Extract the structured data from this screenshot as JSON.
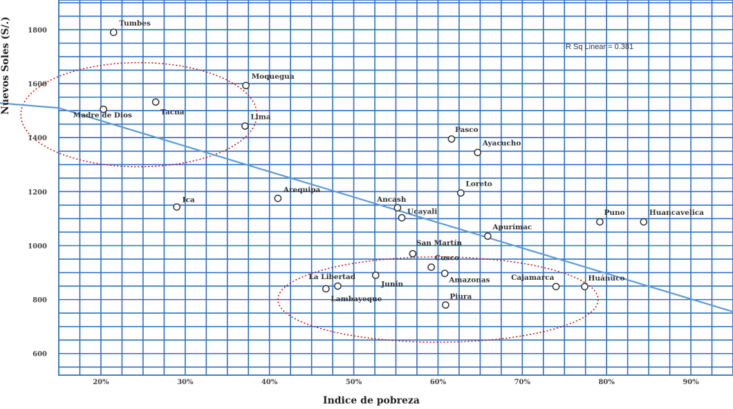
{
  "chart_data": {
    "type": "scatter",
    "xlabel": "Indice de pobreza",
    "ylabel": "Nuevos Soles (S/.)",
    "xlim": [
      0.15,
      0.95
    ],
    "ylim": [
      520,
      1910
    ],
    "x_ticks": [
      {
        "value": 0.2,
        "label": "20%"
      },
      {
        "value": 0.3,
        "label": "30%"
      },
      {
        "value": 0.4,
        "label": "40%"
      },
      {
        "value": 0.5,
        "label": "50%"
      },
      {
        "value": 0.6,
        "label": "60%"
      },
      {
        "value": 0.7,
        "label": "70%"
      },
      {
        "value": 0.8,
        "label": "80%"
      },
      {
        "value": 0.9,
        "label": "90%"
      }
    ],
    "y_ticks": [
      {
        "value": 600,
        "label": "600"
      },
      {
        "value": 800,
        "label": "800"
      },
      {
        "value": 1000,
        "label": "1000"
      },
      {
        "value": 1200,
        "label": "1200"
      },
      {
        "value": 1400,
        "label": "1400"
      },
      {
        "value": 1600,
        "label": "1600"
      },
      {
        "value": 1800,
        "label": "1800"
      }
    ],
    "grid": true,
    "annotation": "R Sq Linear = 0.381",
    "fit_line": {
      "x": [
        0.15,
        0.95
      ],
      "y": [
        1510,
        755
      ]
    },
    "points": [
      {
        "label": "Tumbes",
        "x": 0.215,
        "y": 1790
      },
      {
        "label": "Madre de Dios",
        "x": 0.203,
        "y": 1505
      },
      {
        "label": "Tacna",
        "x": 0.265,
        "y": 1532
      },
      {
        "label": "Moquegua",
        "x": 0.372,
        "y": 1593
      },
      {
        "label": "Lima",
        "x": 0.371,
        "y": 1443
      },
      {
        "label": "Ica",
        "x": 0.29,
        "y": 1143
      },
      {
        "label": "Arequipa",
        "x": 0.41,
        "y": 1175
      },
      {
        "label": "Ancash",
        "x": 0.552,
        "y": 1140
      },
      {
        "label": "Ucayali",
        "x": 0.557,
        "y": 1103
      },
      {
        "label": "Pasco",
        "x": 0.616,
        "y": 1395
      },
      {
        "label": "Ayacucho",
        "x": 0.647,
        "y": 1345
      },
      {
        "label": "Loreto",
        "x": 0.627,
        "y": 1195
      },
      {
        "label": "Apurímac",
        "x": 0.659,
        "y": 1035
      },
      {
        "label": "Puno",
        "x": 0.792,
        "y": 1088
      },
      {
        "label": "Huancavelica",
        "x": 0.844,
        "y": 1088
      },
      {
        "label": "San Martín",
        "x": 0.57,
        "y": 970
      },
      {
        "label": "Cusco",
        "x": 0.592,
        "y": 920
      },
      {
        "label": "Amazonas",
        "x": 0.608,
        "y": 897
      },
      {
        "label": "Junín",
        "x": 0.526,
        "y": 890
      },
      {
        "label": "La Libertad",
        "x": 0.467,
        "y": 840
      },
      {
        "label": "Lambayeque",
        "x": 0.481,
        "y": 850
      },
      {
        "label": "Piura",
        "x": 0.609,
        "y": 780
      },
      {
        "label": "Cajamarca",
        "x": 0.74,
        "y": 848
      },
      {
        "label": "Huánuco",
        "x": 0.774,
        "y": 848
      }
    ],
    "highlight_groups": [
      {
        "cx": 0.245,
        "cy": 1485,
        "rx": 0.14,
        "ry": 193
      },
      {
        "cx": 0.6,
        "cy": 800,
        "rx": 0.19,
        "ry": 158
      }
    ],
    "colors": {
      "grid": "#2d6fc4",
      "fit_line": "#5b9ad5",
      "ellipse": "#cc1111",
      "marker": "#333333"
    }
  }
}
